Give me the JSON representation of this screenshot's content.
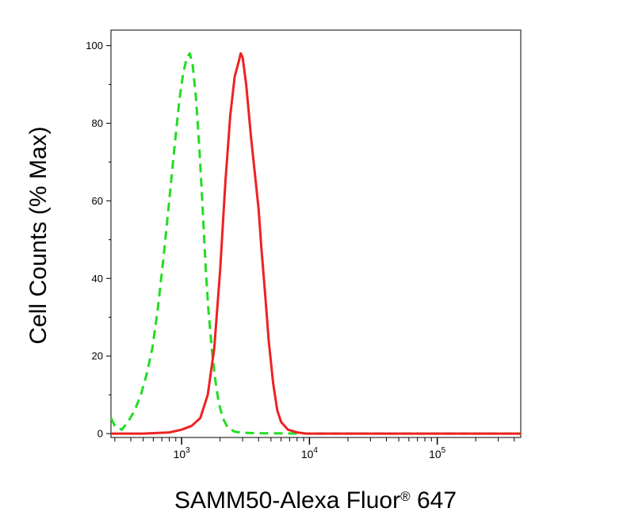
{
  "chart_data": {
    "type": "line",
    "title": "",
    "xlabel": "SAMM50-Alexa Fluor",
    "xlabel_symbol": "®",
    "xlabel_suffix": " 647",
    "ylabel": "Cell Counts (% Max)",
    "x_scale": "log",
    "xlim": [
      280,
      450000
    ],
    "ylim": [
      -1,
      104
    ],
    "x_major_ticks": [
      {
        "value": 1000,
        "base": "10",
        "exp": "3"
      },
      {
        "value": 10000,
        "base": "10",
        "exp": "4"
      },
      {
        "value": 100000,
        "base": "10",
        "exp": "5"
      }
    ],
    "y_ticks": [
      {
        "value": 0,
        "label": "0"
      },
      {
        "value": 20,
        "label": "20"
      },
      {
        "value": 40,
        "label": "40"
      },
      {
        "value": 60,
        "label": "60"
      },
      {
        "value": 80,
        "label": "80"
      },
      {
        "value": 100,
        "label": "100"
      }
    ],
    "grid": false,
    "legend": "none",
    "series": [
      {
        "style": "dashed",
        "color": "#22dd22",
        "points": [
          [
            280,
            4
          ],
          [
            300,
            2
          ],
          [
            340,
            1
          ],
          [
            380,
            3
          ],
          [
            430,
            6
          ],
          [
            480,
            10
          ],
          [
            530,
            15
          ],
          [
            590,
            22
          ],
          [
            650,
            32
          ],
          [
            720,
            45
          ],
          [
            800,
            60
          ],
          [
            880,
            74
          ],
          [
            960,
            86
          ],
          [
            1030,
            93
          ],
          [
            1100,
            97
          ],
          [
            1160,
            98
          ],
          [
            1220,
            95
          ],
          [
            1300,
            86
          ],
          [
            1380,
            73
          ],
          [
            1460,
            58
          ],
          [
            1540,
            43
          ],
          [
            1620,
            32
          ],
          [
            1720,
            22
          ],
          [
            1830,
            14
          ],
          [
            1950,
            8
          ],
          [
            2100,
            4
          ],
          [
            2300,
            1.5
          ],
          [
            2600,
            0.5
          ],
          [
            3000,
            0.2
          ],
          [
            4000,
            0.1
          ],
          [
            10000,
            0
          ],
          [
            100000,
            0
          ],
          [
            450000,
            0
          ]
        ]
      },
      {
        "style": "solid",
        "color": "#ee2222",
        "points": [
          [
            280,
            0
          ],
          [
            500,
            0
          ],
          [
            800,
            0.3
          ],
          [
            1000,
            1
          ],
          [
            1200,
            2
          ],
          [
            1400,
            4
          ],
          [
            1600,
            10
          ],
          [
            1800,
            22
          ],
          [
            2000,
            42
          ],
          [
            2200,
            65
          ],
          [
            2400,
            82
          ],
          [
            2600,
            92
          ],
          [
            2800,
            96
          ],
          [
            2900,
            98
          ],
          [
            3000,
            97
          ],
          [
            3200,
            90
          ],
          [
            3500,
            76
          ],
          [
            3800,
            65
          ],
          [
            4000,
            58
          ],
          [
            4200,
            48
          ],
          [
            4500,
            36
          ],
          [
            4800,
            24
          ],
          [
            5200,
            13
          ],
          [
            5600,
            6
          ],
          [
            6000,
            3
          ],
          [
            6800,
            1
          ],
          [
            8000,
            0.3
          ],
          [
            9500,
            0
          ],
          [
            100000,
            0
          ],
          [
            450000,
            0
          ]
        ]
      }
    ]
  }
}
